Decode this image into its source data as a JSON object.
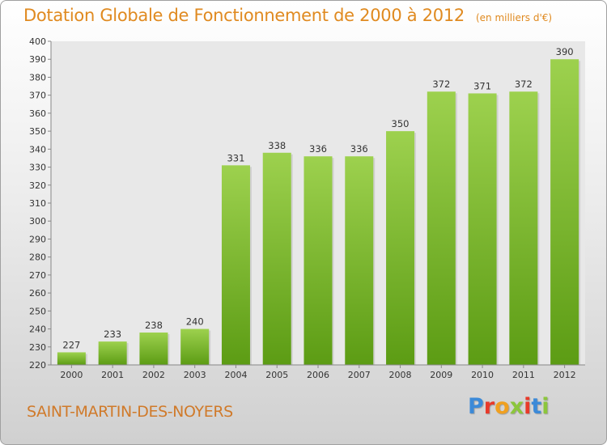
{
  "header": {
    "title": "Dotation Globale de Fonctionnement de 2000 à 2012",
    "subtitle": "(en milliers d'€)"
  },
  "footer": {
    "commune": "SAINT-MARTIN-DES-NOYERS",
    "logo_text": "Proxiti"
  },
  "colors": {
    "bar_top": "#9dd14e",
    "bar_bottom": "#5c9c14",
    "title": "#e08a20",
    "logo": [
      "#3c8ad8",
      "#e83a2a",
      "#f0a020",
      "#8cc63c",
      "#e83a2a",
      "#3c8ad8",
      "#8cc63c"
    ]
  },
  "chart_data": {
    "type": "bar",
    "title": "Dotation Globale de Fonctionnement de 2000 à 2012",
    "subtitle": "(en milliers d'€)",
    "xlabel": "",
    "ylabel": "",
    "categories": [
      "2000",
      "2001",
      "2002",
      "2003",
      "2004",
      "2005",
      "2006",
      "2007",
      "2008",
      "2009",
      "2010",
      "2011",
      "2012"
    ],
    "values": [
      227,
      233,
      238,
      240,
      331,
      338,
      336,
      336,
      350,
      372,
      371,
      372,
      390
    ],
    "ylim": [
      220,
      400
    ],
    "ytick_step": 10,
    "grid": false,
    "legend": "none"
  }
}
